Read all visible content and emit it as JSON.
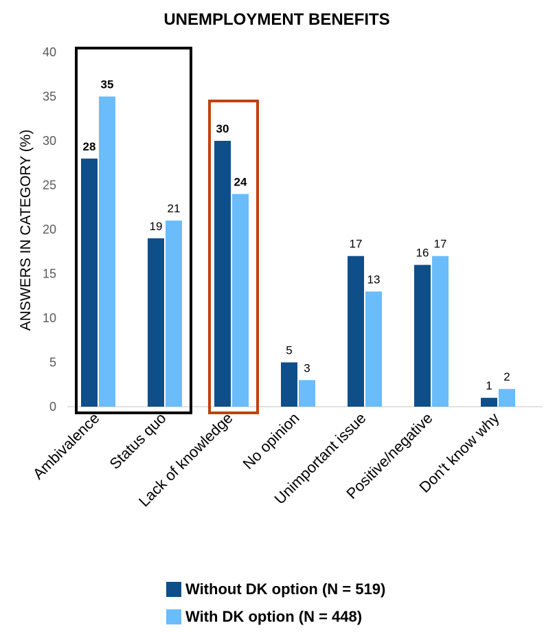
{
  "chart_data": {
    "type": "bar",
    "title": "UNEMPLOYMENT BENEFITS",
    "xlabel": "",
    "ylabel": "ANSWERS IN CATEGORY (%)",
    "ylim": [
      0,
      40
    ],
    "yticks": [
      0,
      5,
      10,
      15,
      20,
      25,
      30,
      35,
      40
    ],
    "grid": false,
    "legend_position": "bottom",
    "categories": [
      "Ambivalence",
      "Status quo",
      "Lack of knowledge",
      "No opinion",
      "Unimportant issue",
      "Positive/negative",
      "Don't know why"
    ],
    "series": [
      {
        "name": "Without DK option (N = 519)",
        "color": "#0e4f8a",
        "values": [
          28,
          19,
          30,
          5,
          17,
          16,
          1
        ]
      },
      {
        "name": "With DK option (N = 448)",
        "color": "#6bbcfa",
        "values": [
          35,
          21,
          24,
          3,
          13,
          17,
          2
        ]
      }
    ],
    "bold_labels": [
      [
        true,
        false,
        true,
        false,
        false,
        false,
        false
      ],
      [
        true,
        false,
        true,
        false,
        false,
        false,
        false
      ]
    ],
    "highlight_boxes": [
      {
        "categories": [
          "Ambivalence",
          "Status quo"
        ],
        "color": "#000000"
      },
      {
        "categories": [
          "Lack of knowledge"
        ],
        "color": "#c0410f"
      }
    ]
  }
}
